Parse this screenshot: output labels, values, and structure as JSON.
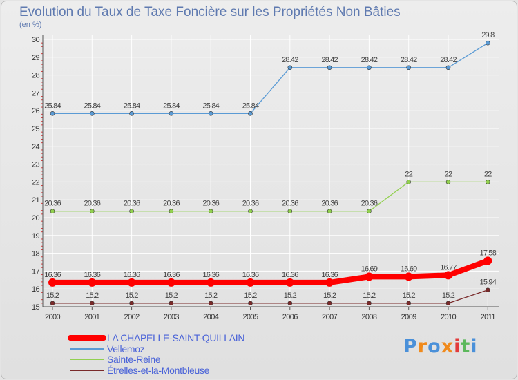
{
  "chart_data": {
    "type": "line",
    "title": "Evolution du Taux de Taxe Foncière sur les Propriétés Non Bâties",
    "ylabel": "(en %)",
    "xlabel": "",
    "ylim": [
      15,
      30
    ],
    "yticks": [
      "15",
      "16",
      "17",
      "18",
      "19",
      "20",
      "21",
      "22",
      "23",
      "24",
      "25",
      "26",
      "27",
      "28",
      "29",
      "30"
    ],
    "x": [
      "2000",
      "2001",
      "2002",
      "2003",
      "2004",
      "2005",
      "2006",
      "2007",
      "2008",
      "2009",
      "2010",
      "2011"
    ],
    "series": [
      {
        "name": "LA CHAPELLE-SAINT-QUILLAIN",
        "color": "#ff0000",
        "values": [
          16.36,
          16.36,
          16.36,
          16.36,
          16.36,
          16.36,
          16.36,
          16.36,
          16.69,
          16.69,
          16.77,
          17.58
        ],
        "labels": [
          "16.36",
          "16.36",
          "16.36",
          "16.36",
          "16.36",
          "16.36",
          "16.36",
          "16.36",
          "16.69",
          "16.69",
          "16.77",
          "17.58"
        ]
      },
      {
        "name": "Vellemoz",
        "color": "#5b9bd5",
        "values": [
          25.84,
          25.84,
          25.84,
          25.84,
          25.84,
          25.84,
          28.42,
          28.42,
          28.42,
          28.42,
          28.42,
          29.8
        ],
        "labels": [
          "25.84",
          "25.84",
          "25.84",
          "25.84",
          "25.84",
          "25.84",
          "28.42",
          "28.42",
          "28.42",
          "28.42",
          "28.42",
          "29.8"
        ]
      },
      {
        "name": "Sainte-Reine",
        "color": "#92d050",
        "values": [
          20.36,
          20.36,
          20.36,
          20.36,
          20.36,
          20.36,
          20.36,
          20.36,
          20.36,
          22,
          22,
          22
        ],
        "labels": [
          "20.36",
          "20.36",
          "20.36",
          "20.36",
          "20.36",
          "20.36",
          "20.36",
          "20.36",
          "20.36",
          "22",
          "22",
          "22"
        ]
      },
      {
        "name": "Étrelles-et-la-Montbleuse",
        "color": "#7a2a2a",
        "values": [
          15.2,
          15.2,
          15.2,
          15.2,
          15.2,
          15.2,
          15.2,
          15.2,
          15.2,
          15.2,
          15.2,
          15.94
        ],
        "labels": [
          "15.2",
          "15.2",
          "15.2",
          "15.2",
          "15.2",
          "15.2",
          "15.2",
          "15.2",
          "15.2",
          "15.2",
          "15.2",
          "15.94"
        ]
      }
    ],
    "legend_position": "bottom-left"
  },
  "logo": {
    "letters": [
      "P",
      "r",
      "o",
      "x",
      "i",
      "t",
      "i"
    ],
    "colors": [
      "#4a90d9",
      "#f08a1c",
      "#4a90d9",
      "#f08a1c",
      "#e23b3b",
      "#5cb85c",
      "#4a90d9"
    ]
  }
}
